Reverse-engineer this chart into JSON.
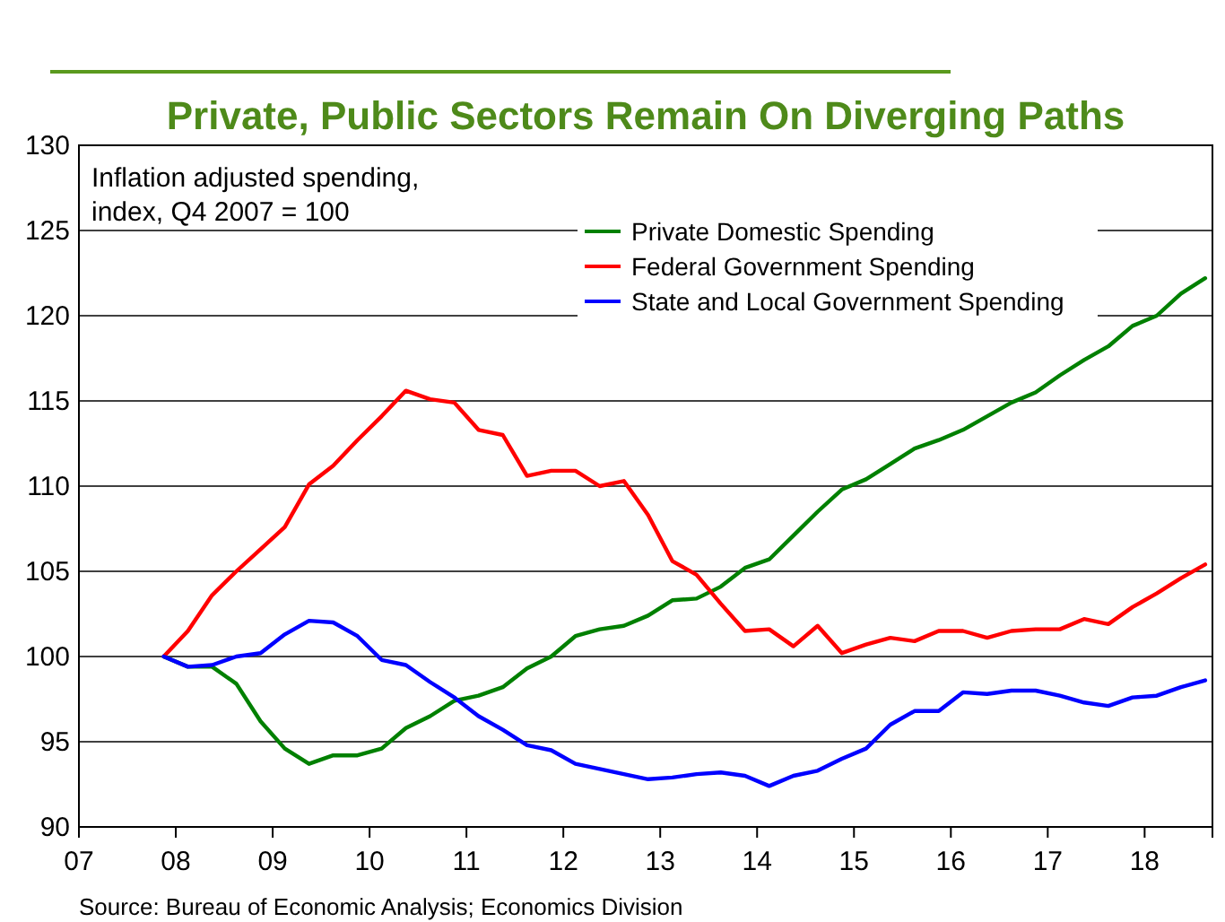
{
  "chart_data": {
    "type": "line",
    "title": "Private, Public Sectors Remain On Diverging Paths",
    "annotations": [
      "Inflation adjusted spending,\nindex, Q4 2007 = 100",
      "Source: Bureau of Economic Analysis; Economics Division"
    ],
    "x": [
      2007.875,
      2008.125,
      2008.375,
      2008.625,
      2008.875,
      2009.125,
      2009.375,
      2009.625,
      2009.875,
      2010.125,
      2010.375,
      2010.625,
      2010.875,
      2011.125,
      2011.375,
      2011.625,
      2011.875,
      2012.125,
      2012.375,
      2012.625,
      2012.875,
      2013.125,
      2013.375,
      2013.625,
      2013.875,
      2014.125,
      2014.375,
      2014.625,
      2014.875,
      2015.125,
      2015.375,
      2015.625,
      2015.875,
      2016.125,
      2016.375,
      2016.625,
      2016.875,
      2017.125,
      2017.375,
      2017.625,
      2017.875,
      2018.125,
      2018.375,
      2018.625
    ],
    "series": [
      {
        "name": "Private Domestic Spending",
        "color": "#008000",
        "values": [
          100.0,
          99.4,
          99.4,
          98.4,
          96.2,
          94.6,
          93.7,
          94.2,
          94.2,
          94.6,
          95.8,
          96.5,
          97.4,
          97.7,
          98.2,
          99.3,
          100.0,
          101.2,
          101.6,
          101.8,
          102.4,
          103.3,
          103.4,
          104.1,
          105.2,
          105.7,
          107.1,
          108.5,
          109.8,
          110.4,
          111.3,
          112.2,
          112.7,
          113.3,
          114.1,
          114.9,
          115.5,
          116.5,
          117.4,
          118.2,
          119.4,
          120.0,
          121.3,
          122.2
        ]
      },
      {
        "name": "Federal Government Spending",
        "color": "#ff0000",
        "values": [
          100.0,
          101.5,
          103.6,
          105.0,
          106.3,
          107.6,
          110.1,
          111.2,
          112.7,
          114.1,
          115.6,
          115.1,
          114.9,
          113.3,
          113.0,
          110.6,
          110.9,
          110.9,
          110.0,
          110.3,
          108.3,
          105.6,
          104.8,
          103.1,
          101.5,
          101.6,
          100.6,
          101.8,
          100.2,
          100.7,
          101.1,
          100.9,
          101.5,
          101.5,
          101.1,
          101.5,
          101.6,
          101.6,
          102.2,
          101.9,
          102.9,
          103.7,
          104.6,
          105.4
        ]
      },
      {
        "name": "State and Local Government Spending",
        "color": "#0000ff",
        "values": [
          100.0,
          99.4,
          99.5,
          100.0,
          100.2,
          101.3,
          102.1,
          102.0,
          101.2,
          99.8,
          99.5,
          98.5,
          97.6,
          96.5,
          95.7,
          94.8,
          94.5,
          93.7,
          93.4,
          93.1,
          92.8,
          92.9,
          93.1,
          93.2,
          93.0,
          92.4,
          93.0,
          93.3,
          94.0,
          94.6,
          96.0,
          96.8,
          96.8,
          97.9,
          97.8,
          98.0,
          98.0,
          97.7,
          97.3,
          97.1,
          97.6,
          97.7,
          98.2,
          98.6
        ]
      }
    ],
    "xlim": [
      2007,
      2018.7
    ],
    "xticks": [
      {
        "value": 2007,
        "label": "07"
      },
      {
        "value": 2008,
        "label": "08"
      },
      {
        "value": 2009,
        "label": "09"
      },
      {
        "value": 2010,
        "label": "10"
      },
      {
        "value": 2011,
        "label": "11"
      },
      {
        "value": 2012,
        "label": "12"
      },
      {
        "value": 2013,
        "label": "13"
      },
      {
        "value": 2014,
        "label": "14"
      },
      {
        "value": 2015,
        "label": "15"
      },
      {
        "value": 2016,
        "label": "16"
      },
      {
        "value": 2017,
        "label": "17"
      },
      {
        "value": 2018,
        "label": "18"
      }
    ],
    "ylim": [
      90,
      130
    ],
    "yticks": [
      90,
      95,
      100,
      105,
      110,
      115,
      120,
      125,
      130
    ],
    "grid": "y",
    "legend": "top right",
    "marker": "none",
    "line_style": "solid"
  }
}
